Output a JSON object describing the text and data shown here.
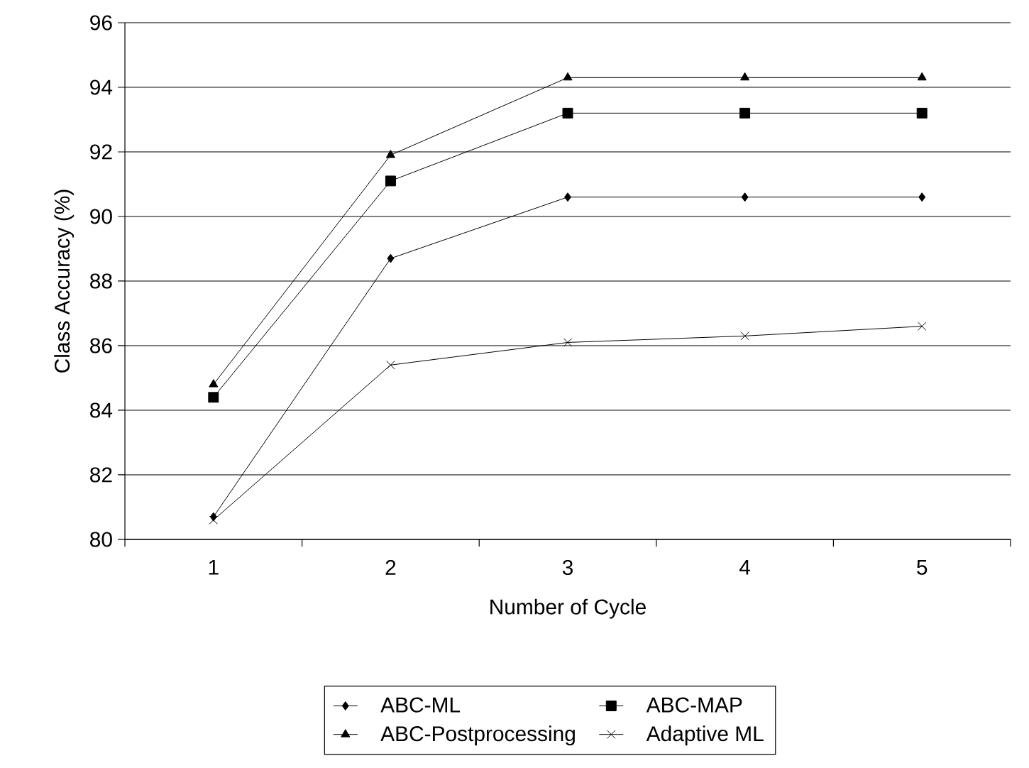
{
  "chart_data": {
    "type": "line",
    "xlabel": "Number of Cycle",
    "ylabel": "Class Accuracy (%)",
    "categories": [
      "1",
      "2",
      "3",
      "4",
      "5"
    ],
    "ylim": [
      80,
      96
    ],
    "yticks": [
      80,
      82,
      84,
      86,
      88,
      90,
      92,
      94,
      96
    ],
    "grid": "y",
    "legend": "bottom",
    "series": [
      {
        "name": "ABC-ML",
        "color": "#000000",
        "marker": "diamond",
        "values": [
          80.7,
          88.7,
          90.6,
          90.6,
          90.6
        ]
      },
      {
        "name": "ABC-MAP",
        "color": "#000000",
        "marker": "square",
        "values": [
          84.4,
          91.1,
          93.2,
          93.2,
          93.2
        ]
      },
      {
        "name": "ABC-Postprocessing",
        "color": "#000000",
        "marker": "triangle",
        "values": [
          84.8,
          91.9,
          94.3,
          94.3,
          94.3
        ]
      },
      {
        "name": "Adaptive ML",
        "color": "#000000",
        "marker": "cross",
        "values": [
          80.6,
          85.4,
          86.1,
          86.3,
          86.6
        ]
      }
    ]
  }
}
